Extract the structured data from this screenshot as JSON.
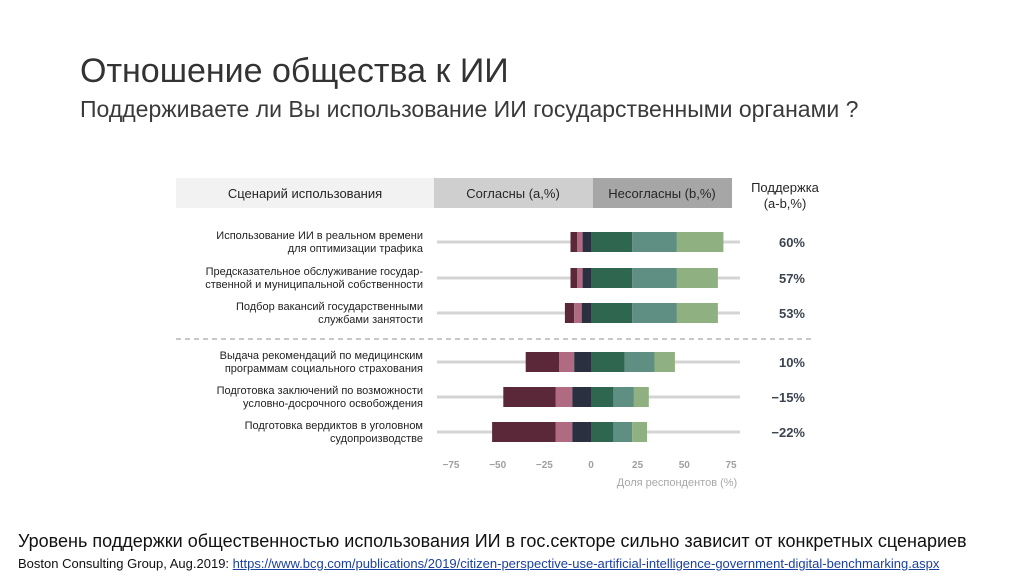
{
  "slide": {
    "title": "Отношение общества к ИИ",
    "subtitle": "Поддерживаете ли Вы использование ИИ государственными органами ?",
    "conclusion": "Уровень поддержки общественностью  использования ИИ  в гос.секторе сильно зависит от конкретных сценариев",
    "source_prefix": "Boston Consulting Group, Aug.2019: ",
    "source_link": "https://www.bcg.com/publications/2019/citizen-perspective-use-artificial-intelligence-government-digital-benchmarking.aspx"
  },
  "chart_data": {
    "type": "bar",
    "orientation": "horizontal-diverging",
    "header": {
      "scenario": "Сценарий использования",
      "agree": "Согласны (а,%)",
      "disagree": "Несогласны (b,%)",
      "support_line1": "Поддержка",
      "support_line2": "(a-b,%)"
    },
    "xlabel": "Доля респондентов (%)",
    "xlim": [
      -80,
      80
    ],
    "xticks": [
      -75,
      -50,
      -25,
      0,
      25,
      50,
      75
    ],
    "xtick_labels": [
      "−75",
      "−50",
      "−25",
      "0",
      "25",
      "50",
      "75"
    ],
    "colors": {
      "disagree_strong": "#5a2838",
      "disagree_mid": "#b06a82",
      "neutral_dark": "#2b3040",
      "agree_dark": "#2f6650",
      "agree_mid": "#5f8f82",
      "agree_light": "#8fb080",
      "grid": "#d4d4d4",
      "header_scenario": "#f2f2f2",
      "header_agree": "#cfcfcf",
      "header_disagree": "#a6a6a6",
      "separator": "#a8a8a8"
    },
    "segments_legend": [
      "disagree_strong",
      "disagree_mid",
      "neutral_dark",
      "agree_dark",
      "agree_mid",
      "agree_light"
    ],
    "categories": [
      {
        "line1": "Использование ИИ в реальном времени",
        "line2": "для оптимизации трафика",
        "support": "60%",
        "segments": [
          [
            -11,
            -7.5
          ],
          [
            -7.5,
            -4.5
          ],
          [
            -4.5,
            0
          ],
          [
            0,
            22
          ],
          [
            22,
            46
          ],
          [
            46,
            71
          ]
        ]
      },
      {
        "line1": "Предсказательное обслуживание государ-",
        "line2": "ственной и муниципальной собственности",
        "support": "57%",
        "segments": [
          [
            -11,
            -7.5
          ],
          [
            -7.5,
            -4.5
          ],
          [
            -4.5,
            0
          ],
          [
            0,
            22
          ],
          [
            22,
            46
          ],
          [
            46,
            68
          ]
        ]
      },
      {
        "line1": "Подбор вакансий государственными",
        "line2": "службами занятости",
        "support": "53%",
        "segments": [
          [
            -14,
            -9
          ],
          [
            -9,
            -5
          ],
          [
            -5,
            0
          ],
          [
            0,
            22
          ],
          [
            22,
            46
          ],
          [
            46,
            68
          ]
        ]
      },
      {
        "line1": "Выдача рекомендаций по медицинским",
        "line2": "программам социального страхования",
        "support": "10%",
        "segments": [
          [
            -35,
            -17
          ],
          [
            -17,
            -9
          ],
          [
            -9,
            0
          ],
          [
            0,
            18
          ],
          [
            18,
            34
          ],
          [
            34,
            45
          ]
        ]
      },
      {
        "line1": "Подготовка заключений по возможности",
        "line2": "условно-досрочного освобождения",
        "support": "−15%",
        "segments": [
          [
            -47,
            -19
          ],
          [
            -19,
            -10
          ],
          [
            -10,
            0
          ],
          [
            0,
            12
          ],
          [
            12,
            23
          ],
          [
            23,
            31
          ]
        ]
      },
      {
        "line1": "Подготовка вердиктов в уголовном",
        "line2": "судопроизводстве",
        "support": "−22%",
        "segments": [
          [
            -53,
            -19
          ],
          [
            -19,
            -10
          ],
          [
            -10,
            0
          ],
          [
            0,
            12
          ],
          [
            12,
            22
          ],
          [
            22,
            30
          ]
        ]
      }
    ]
  }
}
